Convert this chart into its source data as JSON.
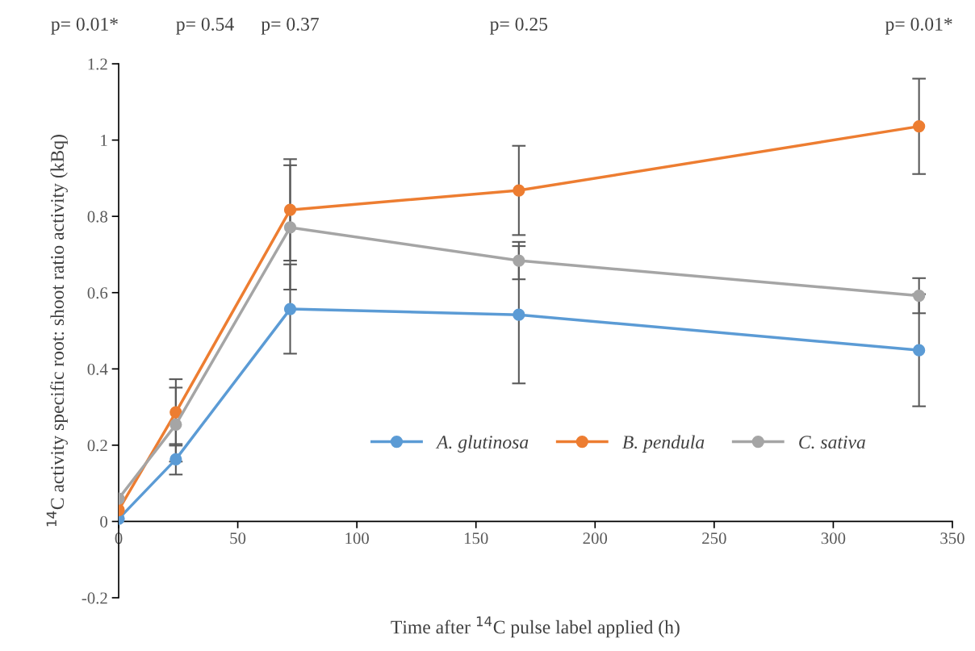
{
  "chart_data": {
    "type": "line",
    "xlabel": "Time after $^{14}$C pulse label applied (h)",
    "ylabel": "$^{14}$C activity specific root: shoot ratio activity (kBq)",
    "x": [
      0,
      24,
      72,
      168,
      336
    ],
    "series": [
      {
        "name": "A. glutinosa",
        "color": "#5b9bd5",
        "values": [
          0.007,
          0.163,
          0.557,
          0.542,
          0.449
        ],
        "errors": [
          null,
          0.04,
          0.117,
          0.18,
          0.147
        ]
      },
      {
        "name": "B. pendula",
        "color": "#ed7d31",
        "values": [
          0.03,
          0.286,
          0.817,
          0.868,
          1.036
        ],
        "errors": [
          null,
          0.087,
          0.133,
          0.117,
          0.125
        ]
      },
      {
        "name": "C. sativa",
        "color": "#a5a5a5",
        "values": [
          0.06,
          0.254,
          0.771,
          0.684,
          0.592
        ],
        "errors": [
          null,
          0.097,
          0.163,
          0.049,
          0.046
        ]
      }
    ],
    "annotations": [
      "p= 0.01*",
      "p= 0.54",
      "p= 0.37",
      "p= 0.25",
      "p= 0.01*"
    ],
    "xlim": [
      0,
      350
    ],
    "xticks": [
      0,
      50,
      100,
      150,
      200,
      250,
      300,
      350
    ],
    "ylim": [
      -0.2,
      1.2
    ],
    "yticks": [
      -0.2,
      0,
      0.2,
      0.4,
      0.6,
      0.8,
      1,
      1.2
    ],
    "grid": false,
    "legend": "bottom",
    "marker": "circle",
    "line_style": "solid"
  }
}
